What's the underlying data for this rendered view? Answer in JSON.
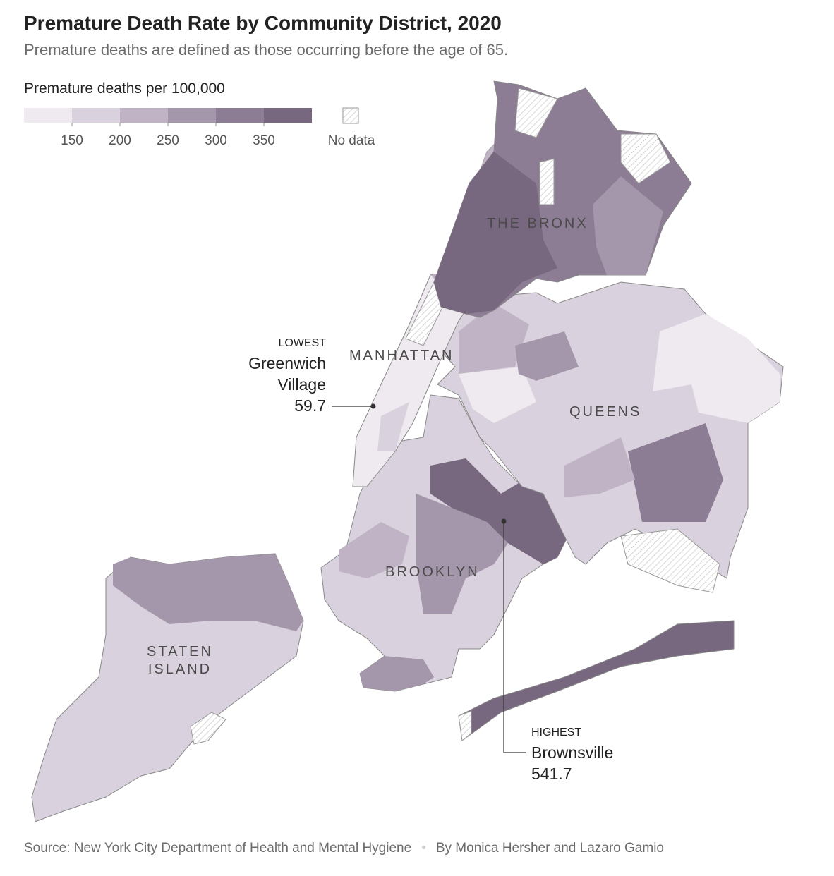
{
  "title": "Premature Death Rate by Community District, 2020",
  "subtitle": "Premature deaths are defined as those occurring before the age of 65.",
  "legend": {
    "title": "Premature deaths per 100,000",
    "colors": [
      "#efeaf0",
      "#d9d1dd",
      "#bfb3c5",
      "#a597ab",
      "#8d7d94",
      "#78687f"
    ],
    "ticks": [
      150,
      200,
      250,
      300,
      350
    ],
    "no_data": "No data"
  },
  "boroughs": [
    "THE BRONX",
    "MANHATTAN",
    "QUEENS",
    "BROOKLYN",
    "STATEN ISLAND"
  ],
  "annotations": [
    {
      "kicker": "LOWEST",
      "name": "Greenwich Village",
      "value": 59.7
    },
    {
      "kicker": "HIGHEST",
      "name": "Brownsville",
      "value": 541.7
    }
  ],
  "source": "Source: New York City Department of Health and Mental Hygiene",
  "byline": "By Monica Hersher and Lazaro Gamio"
}
